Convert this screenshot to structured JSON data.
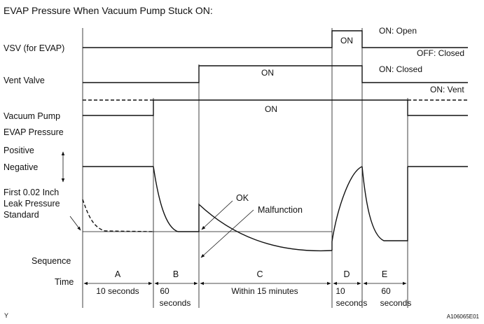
{
  "title": "EVAP Pressure When Vacuum Pump Stuck ON:",
  "labels": {
    "vsv": "VSV (for EVAP)",
    "vent_valve": "Vent Valve",
    "vacuum_pump": "Vacuum Pump",
    "evap_pressure": "EVAP Pressure",
    "positive": "Positive",
    "negative": "Negative",
    "leak_std_line1": "First 0.02 Inch",
    "leak_std_line2": "Leak Pressure",
    "leak_std_line3": "Standard",
    "sequence": "Sequence",
    "time": "Time"
  },
  "states": {
    "on_open": "ON: Open",
    "off_closed": "OFF: Closed",
    "on_closed": "ON: Closed",
    "on_vent": "ON: Vent",
    "vsv_on": "ON",
    "vent_on": "ON",
    "pump_on": "ON"
  },
  "annotations": {
    "ok": "OK",
    "malfunction": "Malfunction"
  },
  "sequence": [
    {
      "label": "A",
      "time": "10 seconds"
    },
    {
      "label": "B",
      "time_line1": "60",
      "time_line2": "seconds"
    },
    {
      "label": "C",
      "time": "Within 15 minutes"
    },
    {
      "label": "D",
      "time_line1": "10",
      "time_line2": "seconds"
    },
    {
      "label": "E",
      "time_line1": "60",
      "time_line2": "seconds"
    }
  ],
  "footer": {
    "left_mark": "Y",
    "figure_id": "A106065E01"
  }
}
